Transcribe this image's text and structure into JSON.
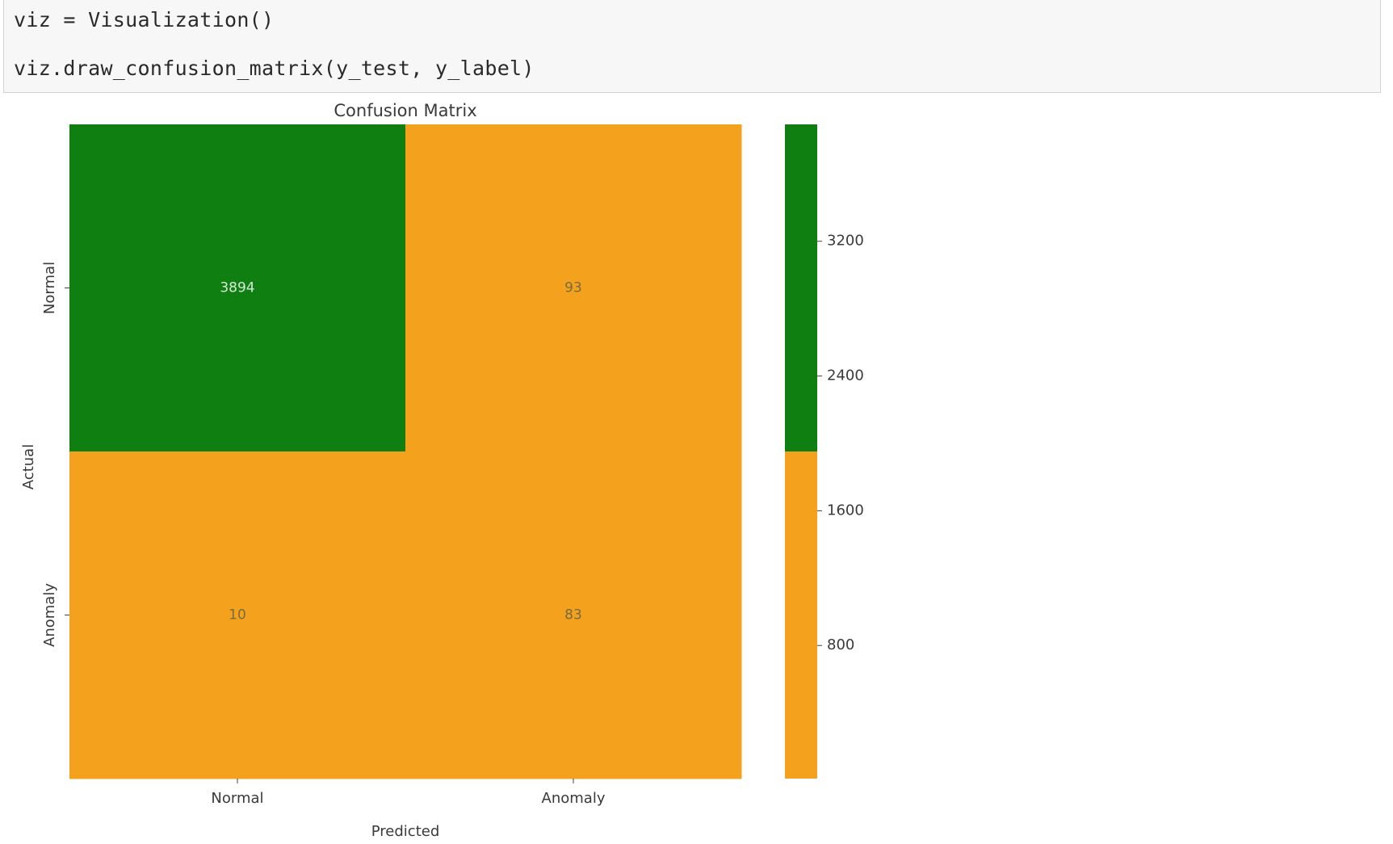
{
  "code_cell": {
    "lines": [
      "viz = Visualization()",
      "viz.draw_confusion_matrix(y_test, y_label)"
    ]
  },
  "chart_data": {
    "type": "heatmap",
    "title": "Confusion Matrix",
    "xlabel": "Predicted",
    "ylabel": "Actual",
    "x_categories": [
      "Normal",
      "Anomaly"
    ],
    "y_categories": [
      "Normal",
      "Anomaly"
    ],
    "values": [
      [
        3894,
        93
      ],
      [
        10,
        83
      ]
    ],
    "colors": {
      "low": "#f4a21e",
      "high": "#0f7f12"
    },
    "colorbar": {
      "ticks": [
        800,
        1600,
        2400,
        3200
      ],
      "range": [
        10,
        3894
      ],
      "split_value": 1952
    }
  }
}
